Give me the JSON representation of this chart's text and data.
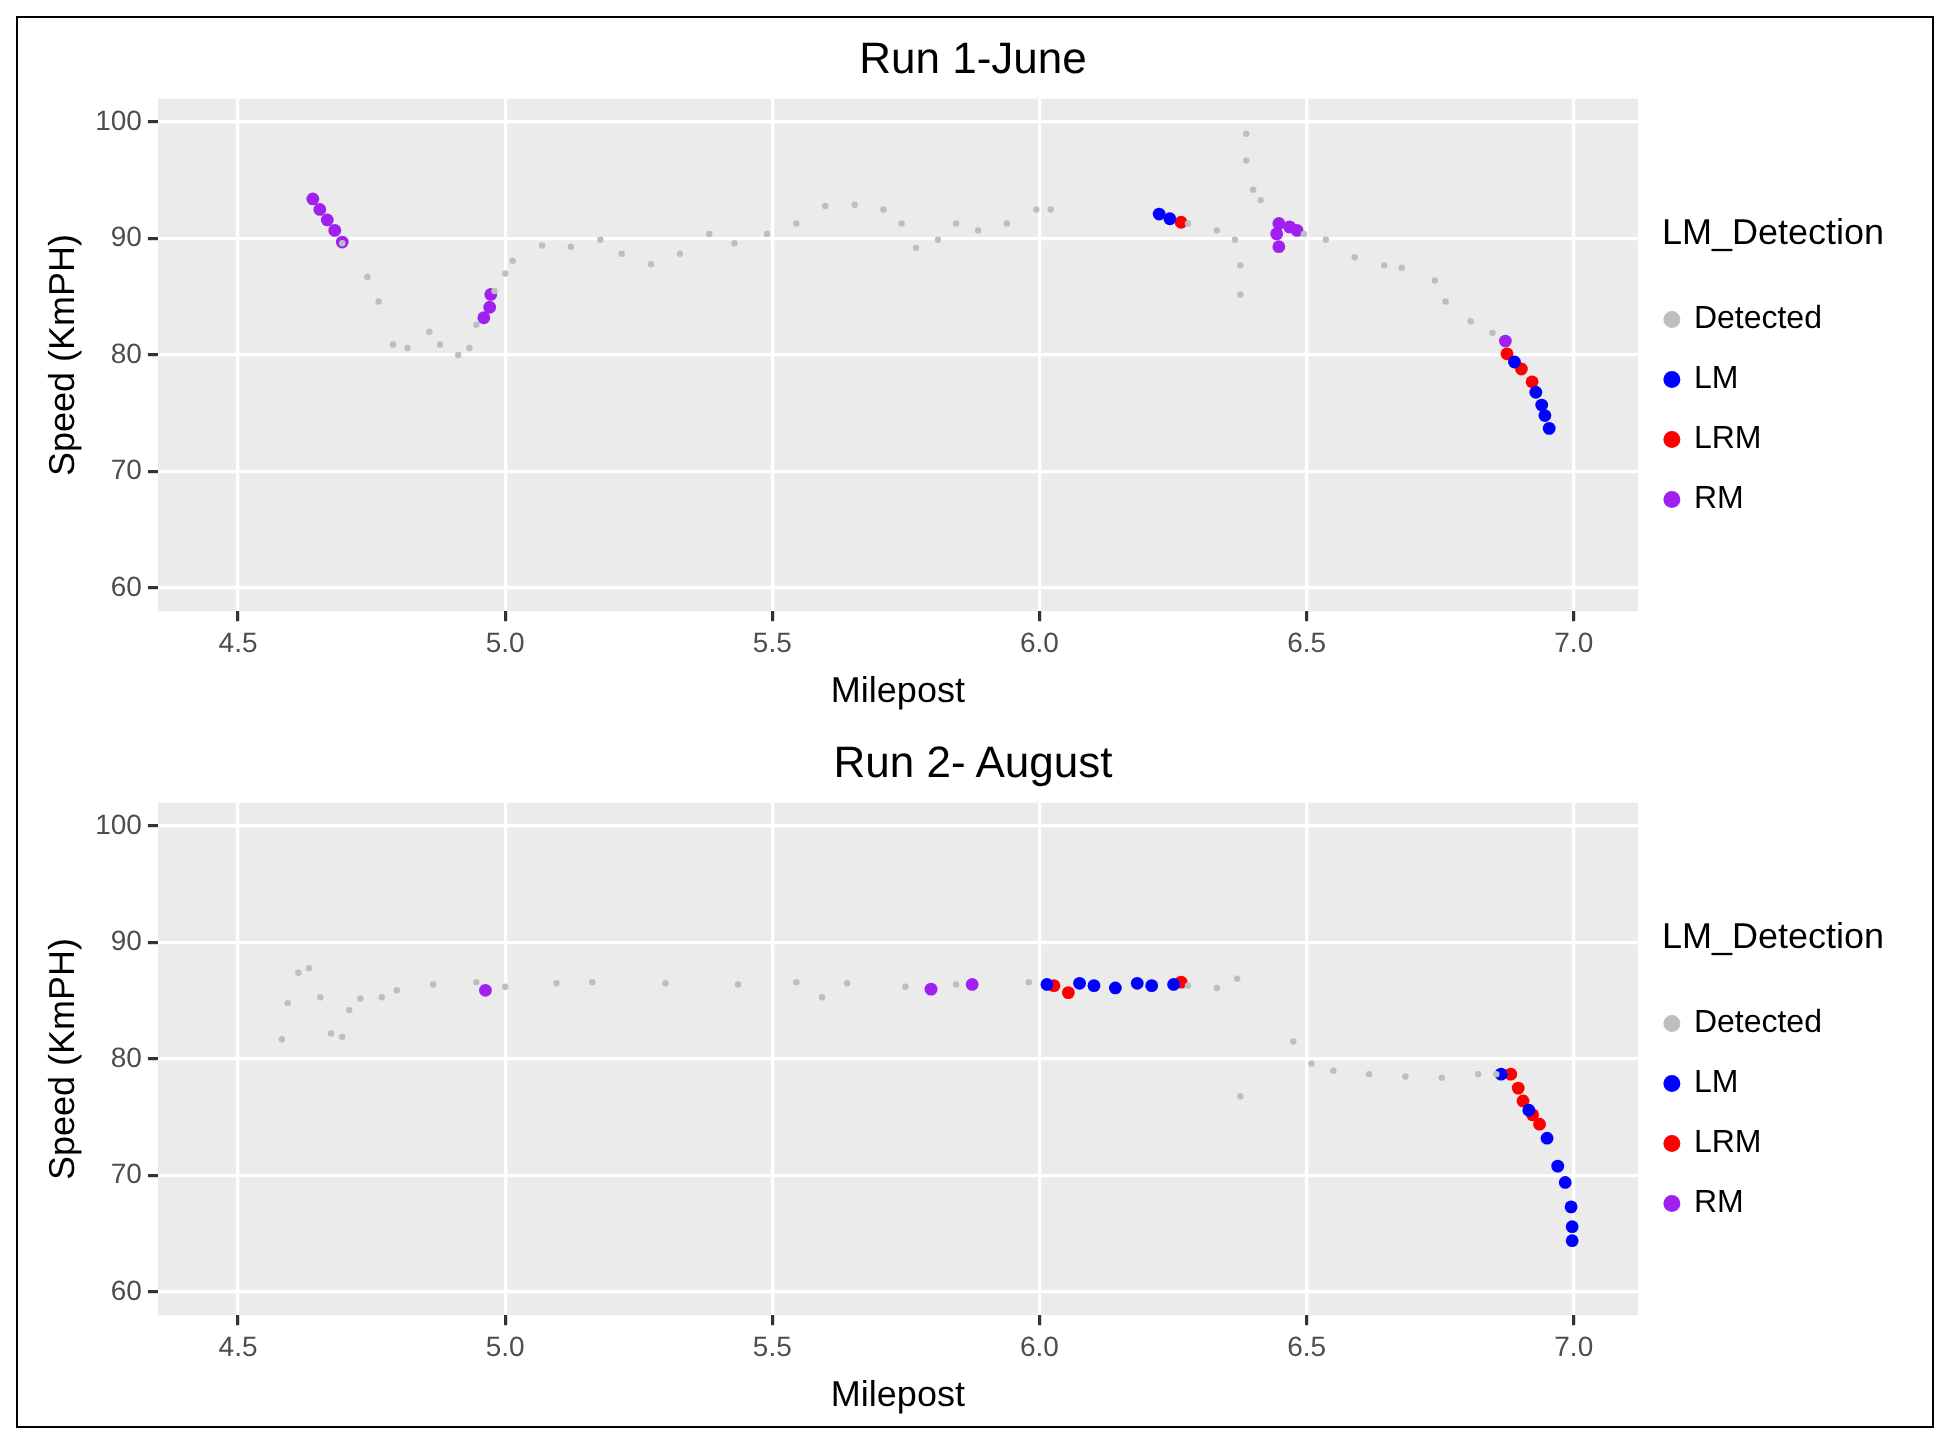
{
  "chart_data": [
    {
      "type": "scatter",
      "title": "Run 1-June",
      "xlabel": "Milepost",
      "ylabel": "Speed (KmPH)",
      "legend_title": "LM_Detection",
      "legend": "right",
      "grid": true,
      "marker": "circle",
      "xlim": [
        4.35,
        7.12
      ],
      "ylim": [
        58,
        102
      ],
      "xticks": [
        4.5,
        {
          "value": 5,
          "label": "5.0"
        },
        5.5,
        {
          "value": 6,
          "label": "6.0"
        },
        6.5,
        {
          "value": 7,
          "label": "7.0"
        }
      ],
      "yticks": [
        60,
        70,
        80,
        90,
        100
      ],
      "series": [
        {
          "name": "Detected",
          "color": "#bebebe",
          "x": [
            4.695,
            4.742,
            4.763,
            4.79,
            4.817,
            4.858,
            4.878,
            4.912,
            4.933,
            4.946,
            4.98,
            5.0,
            5.014,
            5.069,
            5.123,
            5.178,
            5.218,
            5.273,
            5.327,
            5.382,
            5.429,
            5.49,
            5.545,
            5.599,
            5.654,
            5.708,
            5.742,
            5.769,
            5.81,
            5.844,
            5.885,
            5.939,
            5.994,
            6.021,
            6.278,
            6.332,
            6.366,
            6.387,
            6.387,
            6.4,
            6.414,
            6.376,
            6.376,
            6.495,
            6.536,
            6.59,
            6.645,
            6.678,
            6.74,
            6.76,
            6.807,
            6.848
          ],
          "values": [
            89.6,
            86.7,
            84.6,
            80.9,
            80.6,
            82.0,
            80.9,
            80.0,
            80.6,
            82.6,
            85.5,
            87.0,
            88.1,
            89.4,
            89.3,
            89.9,
            88.7,
            87.8,
            88.7,
            90.4,
            89.6,
            90.4,
            91.3,
            92.8,
            92.9,
            92.5,
            91.3,
            89.2,
            89.9,
            91.3,
            90.7,
            91.3,
            92.5,
            92.5,
            91.3,
            90.7,
            89.9,
            99.0,
            96.7,
            94.2,
            93.3,
            87.7,
            85.2,
            90.4,
            89.9,
            88.4,
            87.7,
            87.5,
            86.4,
            84.6,
            82.9,
            81.9
          ]
        },
        {
          "name": "LM",
          "color": "#0000ff",
          "x": [
            6.224,
            6.244,
            6.889,
            6.929,
            6.94,
            6.946,
            6.954
          ],
          "values": [
            92.1,
            91.7,
            79.4,
            76.8,
            75.7,
            74.8,
            73.7
          ]
        },
        {
          "name": "LRM",
          "color": "#ff0000",
          "x": [
            6.265,
            6.875,
            6.902,
            6.922
          ],
          "values": [
            91.4,
            80.1,
            78.8,
            77.7
          ]
        },
        {
          "name": "RM",
          "color": "#a020f0",
          "x": [
            4.64,
            4.653,
            4.667,
            4.681,
            4.695,
            4.96,
            4.971,
            4.973,
            6.448,
            6.448,
            6.468,
            6.482,
            6.444,
            6.872
          ],
          "values": [
            93.4,
            92.5,
            91.6,
            90.7,
            89.7,
            83.2,
            84.1,
            85.2,
            91.3,
            89.3,
            91.0,
            90.7,
            90.4,
            81.2
          ]
        }
      ]
    },
    {
      "type": "scatter",
      "title": "Run 2- August",
      "xlabel": "Milepost",
      "ylabel": "Speed (KmPH)",
      "legend_title": "LM_Detection",
      "legend": "right",
      "grid": true,
      "marker": "circle",
      "xlim": [
        4.35,
        7.12
      ],
      "ylim": [
        58,
        102
      ],
      "xticks": [
        4.5,
        {
          "value": 5,
          "label": "5.0"
        },
        5.5,
        {
          "value": 6,
          "label": "6.0"
        },
        6.5,
        {
          "value": 7,
          "label": "7.0"
        }
      ],
      "yticks": [
        60,
        70,
        80,
        90,
        100
      ],
      "series": [
        {
          "name": "Detected",
          "color": "#bebebe",
          "x": [
            4.582,
            4.593,
            4.613,
            4.633,
            4.654,
            4.674,
            4.695,
            4.708,
            4.729,
            4.769,
            4.797,
            4.865,
            4.946,
            5.0,
            5.096,
            5.163,
            5.3,
            5.436,
            5.545,
            5.593,
            5.64,
            5.749,
            5.844,
            5.98,
            6.278,
            6.332,
            6.37,
            6.376,
            6.475,
            6.509,
            6.55,
            6.617,
            6.685,
            6.753,
            6.821,
            6.855
          ],
          "values": [
            81.7,
            84.8,
            87.4,
            87.8,
            85.3,
            82.2,
            81.9,
            84.2,
            85.2,
            85.3,
            85.9,
            86.4,
            86.6,
            86.2,
            86.5,
            86.6,
            86.5,
            86.4,
            86.6,
            85.3,
            86.5,
            86.2,
            86.4,
            86.6,
            86.3,
            86.1,
            86.9,
            76.8,
            81.5,
            79.6,
            79.0,
            78.7,
            78.5,
            78.4,
            78.7,
            78.7
          ]
        },
        {
          "name": "LM",
          "color": "#0000ff",
          "x": [
            6.014,
            6.075,
            6.102,
            6.142,
            6.183,
            6.21,
            6.251,
            6.864,
            6.916,
            6.95,
            6.97,
            6.984,
            6.995,
            6.997,
            6.997
          ],
          "values": [
            86.4,
            86.5,
            86.3,
            86.1,
            86.5,
            86.3,
            86.4,
            78.7,
            75.6,
            73.2,
            70.8,
            69.4,
            67.3,
            65.6,
            64.4
          ]
        },
        {
          "name": "LRM",
          "color": "#ff0000",
          "x": [
            6.027,
            6.054,
            6.265,
            6.882,
            6.896,
            6.905,
            6.923,
            6.936
          ],
          "values": [
            86.3,
            85.7,
            86.6,
            78.7,
            77.5,
            76.4,
            75.2,
            74.4
          ]
        },
        {
          "name": "RM",
          "color": "#a020f0",
          "x": [
            4.963,
            5.797,
            5.874
          ],
          "values": [
            85.9,
            86.0,
            86.4
          ]
        }
      ]
    }
  ]
}
